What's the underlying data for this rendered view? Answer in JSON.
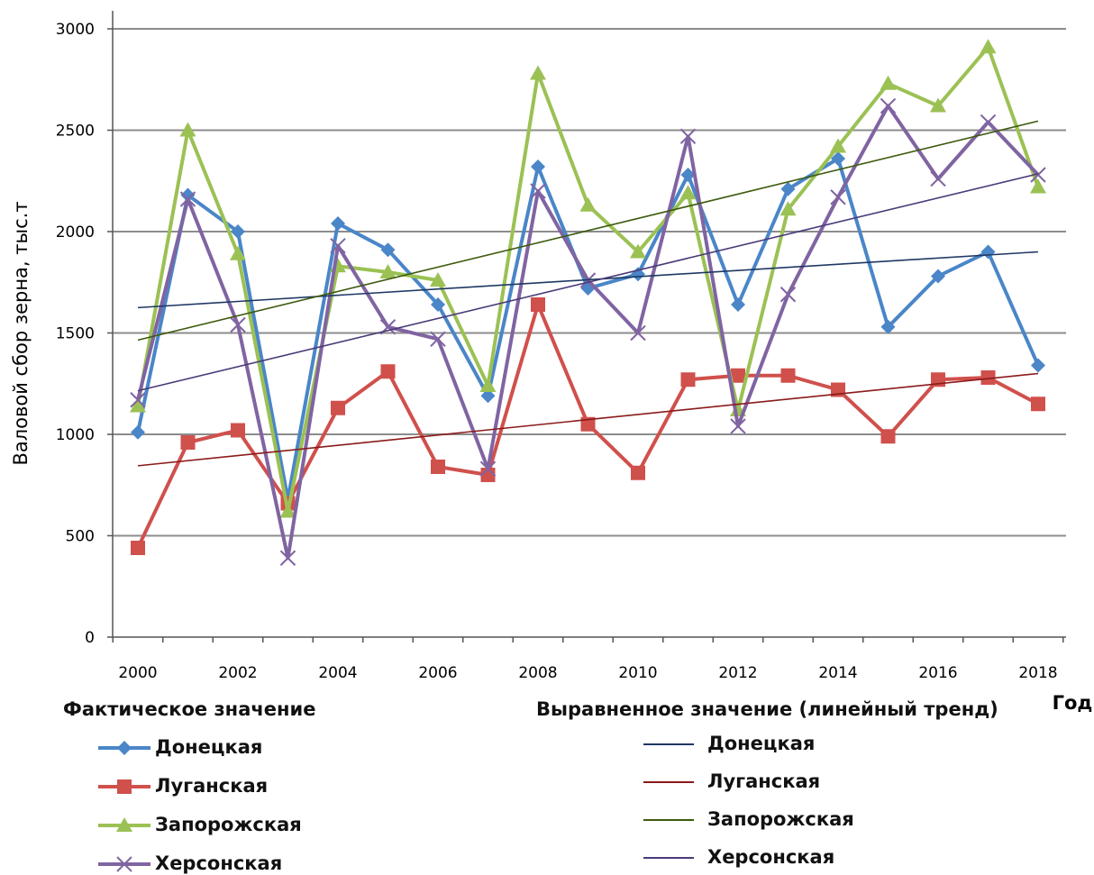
{
  "chart_data": {
    "type": "line",
    "xlabel": "Год",
    "ylabel": "Валовой сбор зерна, тыс.т",
    "ylim": [
      0,
      3000
    ],
    "yticks": [
      "0",
      "500",
      "1000",
      "1500",
      "2000",
      "2500",
      "3000"
    ],
    "xtick_labels": [
      "2000",
      "2002",
      "2004",
      "2006",
      "2008",
      "2010",
      "2012",
      "2014",
      "2016",
      "2018"
    ],
    "x": [
      2000,
      2001,
      2002,
      2003,
      2004,
      2005,
      2006,
      2007,
      2008,
      2009,
      2010,
      2011,
      2012,
      2013,
      2014,
      2015,
      2016,
      2017,
      2018
    ],
    "grid": "horizontal",
    "legend_actual_title": "Фактическое значение",
    "legend_trend_title": "Выравненное значение (линейный тренд)",
    "series": [
      {
        "name": "Донецкая",
        "color": "#4a86c8",
        "marker": "diamond",
        "values": [
          1010,
          2180,
          2000,
          680,
          2040,
          1910,
          1640,
          1190,
          2320,
          1720,
          1790,
          2280,
          1640,
          2210,
          2360,
          1530,
          1780,
          1900,
          1340
        ]
      },
      {
        "name": "Луганская",
        "color": "#d0504c",
        "marker": "square",
        "values": [
          440,
          960,
          1020,
          660,
          1130,
          1310,
          840,
          800,
          1640,
          1050,
          810,
          1270,
          1290,
          1290,
          1220,
          990,
          1270,
          1280,
          1150
        ]
      },
      {
        "name": "Запорожская",
        "color": "#9bc154",
        "marker": "triangle",
        "values": [
          1140,
          2500,
          1890,
          620,
          1830,
          1800,
          1760,
          1240,
          2780,
          2130,
          1900,
          2190,
          1120,
          2110,
          2420,
          2730,
          2620,
          2910,
          2220
        ]
      },
      {
        "name": "Херсонская",
        "color": "#8064a2",
        "marker": "x",
        "values": [
          1170,
          2160,
          1540,
          390,
          1930,
          1530,
          1470,
          830,
          2200,
          1760,
          1500,
          2470,
          1040,
          1690,
          2170,
          2620,
          2260,
          2540,
          2280
        ]
      }
    ],
    "trends": [
      {
        "name": "Донецкая",
        "color": "#1f3864",
        "start": 1625,
        "end": 1900
      },
      {
        "name": "Луганская",
        "color": "#8b1a1a",
        "start": 845,
        "end": 1300
      },
      {
        "name": "Запорожская",
        "color": "#3d5a0e",
        "start": 1465,
        "end": 2545
      },
      {
        "name": "Херсонская",
        "color": "#4a3a78",
        "start": 1215,
        "end": 2285
      }
    ]
  }
}
